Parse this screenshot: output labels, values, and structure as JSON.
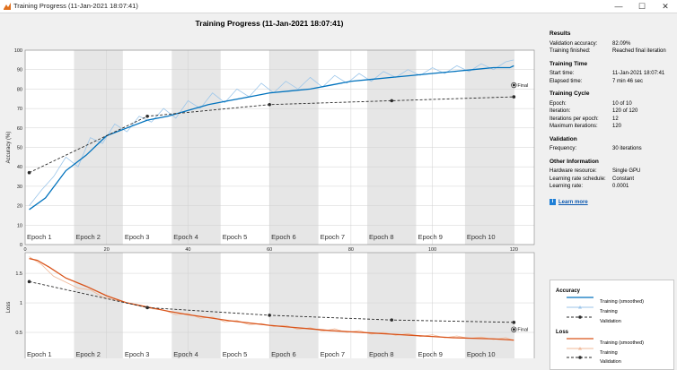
{
  "window": {
    "title": "Training Progress (11-Jan-2021 18:07:41)",
    "minimize": "—",
    "maximize": "☐",
    "close": "✕"
  },
  "main_title": "Training Progress (11-Jan-2021 18:07:41)",
  "info": {
    "results_header": "Results",
    "rows_results": [
      {
        "label": "Validation accuracy:",
        "value": "82.09%"
      },
      {
        "label": "Training finished:",
        "value": "Reached final iteration"
      }
    ],
    "time_header": "Training Time",
    "rows_time": [
      {
        "label": "Start time:",
        "value": "11-Jan-2021 18:07:41"
      },
      {
        "label": "Elapsed time:",
        "value": "7 min 46 sec"
      }
    ],
    "cycle_header": "Training Cycle",
    "rows_cycle": [
      {
        "label": "Epoch:",
        "value": "10 of 10"
      },
      {
        "label": "Iteration:",
        "value": "120 of 120"
      },
      {
        "label": "Iterations per epoch:",
        "value": "12"
      },
      {
        "label": "Maximum iterations:",
        "value": "120"
      }
    ],
    "validation_header": "Validation",
    "rows_validation": [
      {
        "label": "Frequency:",
        "value": "30 iterations"
      }
    ],
    "other_header": "Other Information",
    "rows_other": [
      {
        "label": "Hardware resource:",
        "value": "Single GPU"
      },
      {
        "label": "Learning rate schedule:",
        "value": "Constant"
      },
      {
        "label": "Learning rate:",
        "value": "0.0001"
      }
    ],
    "learn_more": "Learn more"
  },
  "legend": {
    "accuracy_header": "Accuracy",
    "loss_header": "Loss",
    "acc_items": [
      "Training (smoothed)",
      "Training",
      "Validation"
    ],
    "loss_items": [
      "Training (smoothed)",
      "Training",
      "Validation"
    ]
  },
  "colors": {
    "acc_smoothed": "#0072bd",
    "acc_raw": "#9cc6ea",
    "loss_smoothed": "#d95319",
    "loss_raw": "#f0b898",
    "validation": "#2b2b2b",
    "epoch_shade": "#e6e6e6"
  },
  "chart_data": [
    {
      "type": "line",
      "xlabel": "Iteration",
      "ylabel": "Accuracy (%)",
      "xlim": [
        0,
        125
      ],
      "ylim": [
        0,
        100
      ],
      "xticks": [
        0,
        20,
        40,
        60,
        80,
        100,
        120
      ],
      "yticks": [
        0,
        10,
        20,
        30,
        40,
        50,
        60,
        70,
        80,
        90,
        100
      ],
      "epochs": [
        "Epoch 1",
        "Epoch 2",
        "Epoch 3",
        "Epoch 4",
        "Epoch 5",
        "Epoch 6",
        "Epoch 7",
        "Epoch 8",
        "Epoch 9",
        "Epoch 10"
      ],
      "iterations_per_epoch": 12,
      "final_label": "Final",
      "series": [
        {
          "name": "Training (smoothed)",
          "x": [
            1,
            5,
            10,
            15,
            20,
            25,
            30,
            35,
            40,
            45,
            50,
            55,
            60,
            65,
            70,
            75,
            80,
            85,
            90,
            95,
            100,
            105,
            110,
            115,
            119,
            120
          ],
          "values": [
            18,
            24,
            38,
            46,
            56,
            60,
            64,
            66,
            69,
            72,
            74,
            76,
            78,
            79,
            80,
            82,
            84,
            85,
            86,
            87,
            88,
            89,
            90,
            91,
            91,
            92
          ]
        },
        {
          "name": "Training",
          "x": [
            1,
            4,
            7,
            10,
            13,
            16,
            19,
            22,
            25,
            28,
            31,
            34,
            37,
            40,
            43,
            46,
            49,
            52,
            55,
            58,
            61,
            64,
            67,
            70,
            73,
            76,
            79,
            82,
            85,
            88,
            91,
            94,
            97,
            100,
            103,
            106,
            109,
            112,
            115,
            118,
            120
          ],
          "values": [
            20,
            28,
            35,
            45,
            40,
            55,
            52,
            62,
            58,
            66,
            63,
            70,
            65,
            74,
            70,
            78,
            73,
            80,
            76,
            83,
            78,
            84,
            80,
            86,
            81,
            87,
            83,
            88,
            84,
            89,
            86,
            90,
            87,
            91,
            88,
            92,
            89,
            93,
            90,
            94,
            95
          ]
        },
        {
          "name": "Validation",
          "x": [
            1,
            30,
            60,
            90,
            120
          ],
          "values": [
            37,
            66,
            72,
            74,
            76
          ]
        },
        {
          "name": "Final",
          "x": [
            120
          ],
          "values": [
            82
          ]
        }
      ]
    },
    {
      "type": "line",
      "xlabel": "Iteration",
      "ylabel": "Loss",
      "xlim": [
        0,
        125
      ],
      "ylim": [
        0,
        1.85
      ],
      "xticks": [
        0,
        20,
        40,
        60,
        80,
        100,
        120
      ],
      "yticks": [
        0,
        0.5,
        1,
        1.5
      ],
      "epochs": [
        "Epoch 1",
        "Epoch 2",
        "Epoch 3",
        "Epoch 4",
        "Epoch 5",
        "Epoch 6",
        "Epoch 7",
        "Epoch 8",
        "Epoch 9",
        "Epoch 10"
      ],
      "iterations_per_epoch": 12,
      "final_label": "Final",
      "series": [
        {
          "name": "Training (smoothed)",
          "x": [
            1,
            3,
            6,
            10,
            15,
            20,
            25,
            30,
            35,
            40,
            45,
            50,
            55,
            60,
            65,
            70,
            75,
            80,
            85,
            90,
            95,
            100,
            105,
            110,
            115,
            120
          ],
          "values": [
            1.75,
            1.72,
            1.6,
            1.42,
            1.28,
            1.12,
            1.0,
            0.93,
            0.86,
            0.8,
            0.75,
            0.7,
            0.66,
            0.62,
            0.59,
            0.56,
            0.53,
            0.51,
            0.49,
            0.47,
            0.45,
            0.43,
            0.41,
            0.4,
            0.39,
            0.37
          ]
        },
        {
          "name": "Training",
          "x": [
            1,
            4,
            7,
            10,
            13,
            16,
            19,
            22,
            25,
            28,
            31,
            34,
            37,
            40,
            43,
            46,
            49,
            52,
            55,
            58,
            61,
            64,
            67,
            70,
            73,
            76,
            79,
            82,
            85,
            88,
            91,
            94,
            97,
            100,
            103,
            106,
            109,
            112,
            115,
            118,
            120
          ],
          "values": [
            1.78,
            1.65,
            1.45,
            1.35,
            1.25,
            1.22,
            1.1,
            1.05,
            1.0,
            0.95,
            0.9,
            0.88,
            0.8,
            0.82,
            0.74,
            0.76,
            0.68,
            0.7,
            0.63,
            0.65,
            0.6,
            0.62,
            0.55,
            0.58,
            0.52,
            0.56,
            0.5,
            0.53,
            0.47,
            0.5,
            0.45,
            0.48,
            0.43,
            0.46,
            0.41,
            0.44,
            0.4,
            0.42,
            0.38,
            0.41,
            0.36
          ]
        },
        {
          "name": "Validation",
          "x": [
            1,
            30,
            60,
            90,
            120
          ],
          "values": [
            1.36,
            0.92,
            0.79,
            0.71,
            0.67
          ]
        },
        {
          "name": "Final",
          "x": [
            120
          ],
          "values": [
            0.55
          ]
        }
      ]
    }
  ]
}
